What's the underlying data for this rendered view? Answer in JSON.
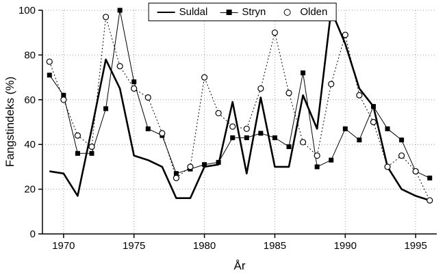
{
  "chart_data": {
    "type": "line",
    "title": "",
    "xlabel": "År",
    "ylabel": "Fangstindeks (%)",
    "xlim": [
      1968.5,
      1996.5
    ],
    "ylim": [
      0,
      100
    ],
    "x_ticks": [
      1970,
      1975,
      1980,
      1985,
      1990,
      1995
    ],
    "y_ticks": [
      0,
      20,
      40,
      60,
      80,
      100
    ],
    "grid": "dotted",
    "legend_position": "top-center",
    "colors": {
      "line": "#000000",
      "grid": "#999999",
      "background": "#ffffff"
    },
    "x": [
      1969,
      1970,
      1971,
      1972,
      1973,
      1974,
      1975,
      1976,
      1977,
      1978,
      1979,
      1980,
      1981,
      1982,
      1983,
      1984,
      1985,
      1986,
      1987,
      1988,
      1989,
      1990,
      1991,
      1992,
      1993,
      1994,
      1995,
      1996
    ],
    "series": [
      {
        "name": "Suldal",
        "marker": "none",
        "line_style": "solid",
        "line_width": 2.6,
        "color": "#000000",
        "values": [
          28,
          27,
          17,
          47,
          78,
          65,
          35,
          33,
          30,
          16,
          16,
          30,
          31,
          59,
          27,
          61,
          30,
          30,
          62,
          47,
          100,
          85,
          65,
          57,
          30,
          20,
          17,
          15
        ]
      },
      {
        "name": "Stryn",
        "marker": "square",
        "line_style": "solid",
        "line_width": 1,
        "color": "#000000",
        "values": [
          71,
          62,
          36,
          36,
          56,
          100,
          68,
          47,
          44,
          27,
          29,
          31,
          32,
          43,
          43,
          45,
          43,
          39,
          72,
          30,
          33,
          47,
          42,
          57,
          47,
          42,
          28,
          25
        ]
      },
      {
        "name": "Olden",
        "marker": "circle",
        "line_style": "dotted",
        "line_width": 1,
        "color": "#000000",
        "values": [
          77,
          60,
          44,
          39,
          97,
          75,
          65,
          61,
          45,
          25,
          30,
          70,
          54,
          48,
          47,
          65,
          90,
          63,
          41,
          35,
          67,
          89,
          62,
          50,
          30,
          35,
          28,
          15
        ]
      }
    ]
  }
}
